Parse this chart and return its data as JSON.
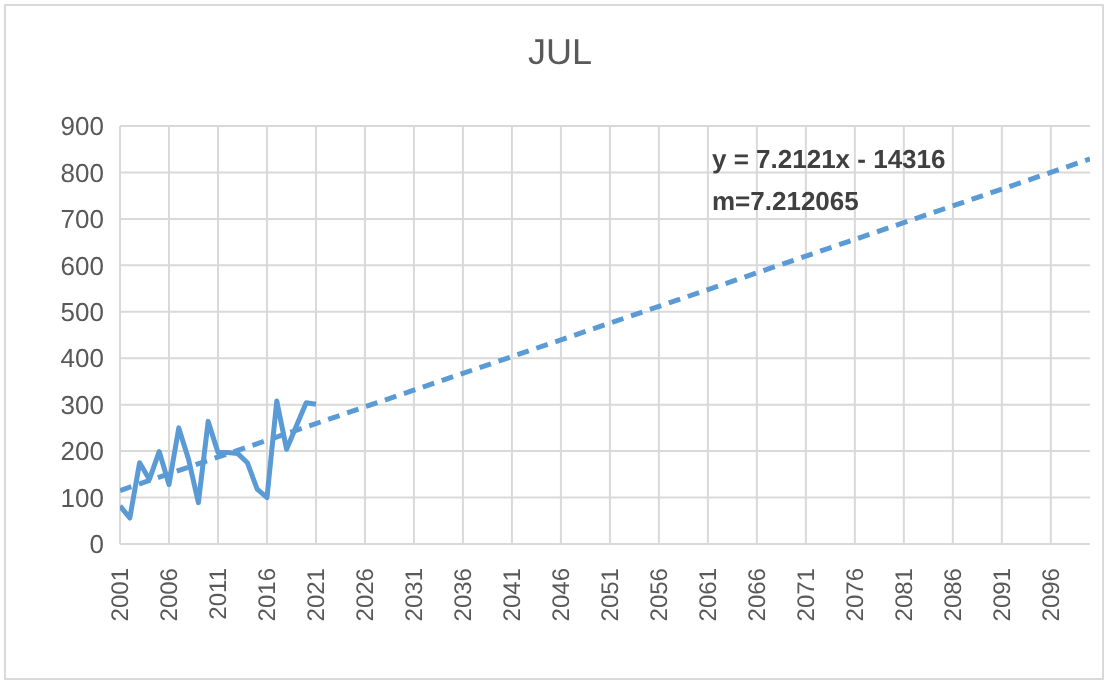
{
  "chart_data": {
    "type": "line",
    "title": "JUL",
    "x": [
      2001,
      2002,
      2003,
      2004,
      2005,
      2006,
      2007,
      2008,
      2009,
      2010,
      2011,
      2012,
      2013,
      2014,
      2015,
      2016,
      2017,
      2018,
      2019,
      2020,
      2021
    ],
    "series": [
      {
        "color": "#5b9bd5",
        "line_style": "solid",
        "values": [
          82,
          56,
          175,
          139,
          199,
          128,
          250,
          182,
          89,
          264,
          197,
          197,
          195,
          175,
          118,
          100,
          308,
          204,
          254,
          304,
          301
        ]
      },
      {
        "type": "line",
        "color": "#5b9bd5",
        "line_style": "dashed",
        "x": [
          2001,
          2100
        ],
        "values": [
          115,
          829
        ]
      }
    ],
    "xlim": [
      2001,
      2100
    ],
    "xticks": [
      2001,
      2006,
      2011,
      2016,
      2021,
      2026,
      2031,
      2036,
      2041,
      2046,
      2051,
      2056,
      2061,
      2066,
      2071,
      2076,
      2081,
      2086,
      2091,
      2096
    ],
    "ylim": [
      0,
      900
    ],
    "yticks": [
      0,
      100,
      200,
      300,
      400,
      500,
      600,
      700,
      800,
      900
    ],
    "grid": true,
    "legend": false,
    "marker": "none",
    "annotations": [
      "y = 7.2121x - 14316",
      "m=7.212065"
    ]
  }
}
